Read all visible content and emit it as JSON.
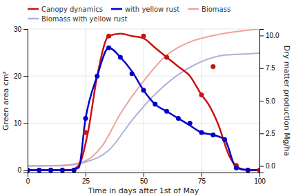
{
  "chart_data": {
    "type": "line",
    "x_label": "Time in days after 1st of May",
    "y_label": "Green area cm²",
    "y2_label": "Dry matter production Mg/ha",
    "xlim": [
      0,
      100
    ],
    "ylim": [
      -0.5,
      30
    ],
    "y2lim": [
      -0.5,
      10.5
    ],
    "xticks": [
      0,
      25,
      50,
      75,
      100
    ],
    "yticks": [
      0,
      10,
      20,
      30
    ],
    "y2ticks": [
      {
        "value": 0.0,
        "label": "0.0"
      },
      2.5,
      {
        "value": 5.0,
        "label": "5.0"
      },
      7.5,
      {
        "value": 10.0,
        "label": "10.0"
      }
    ],
    "grid": true,
    "legend": "top-left",
    "series": [
      {
        "name": "Canopy dynamics",
        "type": "line",
        "color": "#cc1111",
        "x": [
          0,
          10,
          18,
          22,
          26,
          30,
          35,
          40,
          45,
          50,
          55,
          60,
          65,
          70,
          75,
          78,
          82,
          87,
          91,
          95,
          100
        ],
        "values": [
          0,
          0,
          0,
          1,
          8,
          20,
          28.5,
          29,
          28.5,
          28,
          26,
          24,
          22,
          20,
          16,
          14,
          10,
          3,
          0.5,
          0,
          0
        ]
      },
      {
        "name": "with yellow rust",
        "type": "line",
        "color": "#0000cc",
        "x": [
          0,
          10,
          18,
          22,
          25,
          30,
          35,
          40,
          45,
          50,
          55,
          60,
          65,
          70,
          75,
          80,
          85,
          90,
          95,
          100
        ],
        "values": [
          0,
          0,
          0,
          0.5,
          11,
          20,
          26,
          24,
          21,
          17,
          14,
          12.5,
          11,
          9.5,
          8,
          7.5,
          6.5,
          0.5,
          0,
          0
        ]
      },
      {
        "name": "Biomass",
        "type": "line",
        "color": "#f0a0a0",
        "axis": "y2",
        "x": [
          0,
          15,
          25,
          32,
          40,
          50,
          60,
          70,
          80,
          90,
          100
        ],
        "values": [
          0,
          0.05,
          0.4,
          1.5,
          4.0,
          6.5,
          8.5,
          9.5,
          10.0,
          10.3,
          10.5
        ]
      },
      {
        "name": "Biomass with yellow rust",
        "type": "line",
        "color": "#b0b0dd",
        "axis": "y2",
        "x": [
          0,
          15,
          25,
          35,
          45,
          55,
          65,
          75,
          85,
          95,
          100
        ],
        "values": [
          0,
          0.02,
          0.3,
          1.2,
          3.5,
          5.5,
          7.0,
          8.0,
          8.5,
          8.6,
          8.65
        ]
      },
      {
        "type": "scatter",
        "color": "#cc1111",
        "x": [
          0,
          5,
          10,
          15,
          20,
          25,
          35,
          50,
          60,
          75,
          80,
          90,
          95,
          100
        ],
        "values": [
          0,
          0,
          0,
          0,
          0,
          8,
          28.5,
          28.5,
          24,
          16,
          22,
          1,
          0,
          0
        ]
      },
      {
        "type": "scatter",
        "color": "#0000cc",
        "x": [
          0,
          5,
          10,
          15,
          20,
          25,
          30,
          35,
          40,
          45,
          50,
          55,
          60,
          65,
          70,
          75,
          80,
          85,
          90,
          95
        ],
        "values": [
          0,
          0,
          0,
          0,
          0,
          11,
          20,
          26,
          24,
          20.5,
          17,
          14,
          12.5,
          11,
          10,
          8,
          7.5,
          6.5,
          0.5,
          0
        ]
      }
    ]
  }
}
